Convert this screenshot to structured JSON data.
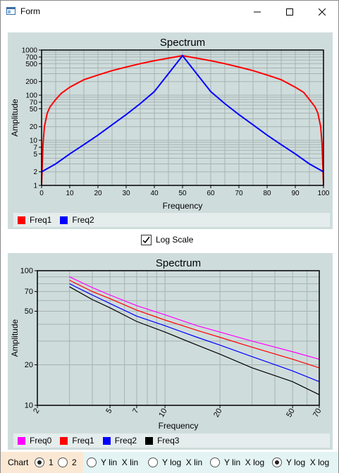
{
  "window": {
    "title": "Form"
  },
  "log_scale": {
    "label": "Log Scale",
    "checked": true
  },
  "bottom": {
    "chart_label": "Chart",
    "chart_options": [
      "1",
      "2"
    ],
    "chart_selected": "1",
    "scale_options": [
      "Y lin  X lin",
      "Y log  X lin",
      "Y lin  X log",
      "Y log  X log"
    ],
    "scale_selected": "Y log  X log"
  },
  "chart1": {
    "legend": [
      {
        "name": "Freq1",
        "color": "#ff0000"
      },
      {
        "name": "Freq2",
        "color": "#0000ff"
      }
    ]
  },
  "chart2": {
    "legend": [
      {
        "name": "Freq0",
        "color": "#ff00ff"
      },
      {
        "name": "Freq1",
        "color": "#ff0000"
      },
      {
        "name": "Freq2",
        "color": "#0000ff"
      },
      {
        "name": "Freq3",
        "color": "#000000"
      }
    ]
  },
  "chart_data": [
    {
      "type": "line",
      "title": "Spectrum",
      "xlabel": "Frequency",
      "ylabel": "Amplitude",
      "xlim": [
        0,
        100
      ],
      "ylim": [
        1,
        1000
      ],
      "yscale": "log",
      "grid": true,
      "xticks": [
        "0",
        "10",
        "20",
        "30",
        "40",
        "50",
        "60",
        "70",
        "80",
        "90",
        "100"
      ],
      "yticks": [
        "1",
        "2",
        "5",
        "7",
        "10",
        "20",
        "50",
        "70",
        "100",
        "200",
        "500",
        "700",
        "1000"
      ],
      "series": [
        {
          "name": "Freq1",
          "color": "#ff0000",
          "x": [
            0,
            0.5,
            1,
            2,
            3,
            5,
            7,
            10,
            15,
            20,
            25,
            30,
            35,
            40,
            45,
            50,
            55,
            60,
            65,
            70,
            75,
            80,
            85,
            90,
            93,
            95,
            97,
            98,
            99,
            99.5,
            100
          ],
          "y": [
            1,
            8,
            20,
            40,
            55,
            80,
            110,
            150,
            220,
            280,
            350,
            420,
            500,
            580,
            660,
            750,
            660,
            580,
            500,
            420,
            350,
            280,
            220,
            150,
            115,
            80,
            55,
            40,
            20,
            8,
            1
          ]
        },
        {
          "name": "Freq2",
          "color": "#0000ff",
          "x": [
            0,
            5,
            10,
            15,
            20,
            25,
            30,
            35,
            40,
            45,
            50,
            55,
            60,
            65,
            70,
            75,
            80,
            85,
            90,
            95,
            100
          ],
          "y": [
            2,
            3,
            5,
            8,
            13,
            22,
            37,
            65,
            120,
            300,
            750,
            300,
            120,
            65,
            37,
            22,
            13,
            8,
            5,
            3,
            2
          ]
        }
      ]
    },
    {
      "type": "line",
      "title": "Spectrum",
      "xlabel": "Frequency",
      "ylabel": "Amplitude",
      "xlim": [
        2,
        70
      ],
      "ylim": [
        10,
        100
      ],
      "xscale": "log",
      "yscale": "log",
      "grid": true,
      "xticks": [
        "2",
        "5",
        "7",
        "10",
        "20",
        "50",
        "70"
      ],
      "yticks": [
        "10",
        "20",
        "50",
        "70",
        "100"
      ],
      "series": [
        {
          "name": "Freq0",
          "color": "#ff00ff",
          "x": [
            3,
            4,
            5,
            7,
            10,
            15,
            20,
            30,
            50,
            70
          ],
          "y": [
            90,
            75,
            66,
            55,
            47,
            39,
            35,
            30,
            25,
            22
          ]
        },
        {
          "name": "Freq1",
          "color": "#ff0000",
          "x": [
            3,
            4,
            5,
            7,
            10,
            15,
            20,
            30,
            50,
            70
          ],
          "y": [
            85,
            70,
            62,
            51,
            43,
            36,
            32,
            27,
            22,
            19
          ]
        },
        {
          "name": "Freq2",
          "color": "#0000ff",
          "x": [
            3,
            4,
            5,
            7,
            10,
            15,
            20,
            30,
            50,
            70
          ],
          "y": [
            80,
            66,
            57,
            46,
            39,
            32,
            28,
            23,
            18,
            15
          ]
        },
        {
          "name": "Freq3",
          "color": "#000000",
          "x": [
            3,
            4,
            5,
            7,
            10,
            15,
            20,
            30,
            50,
            70
          ],
          "y": [
            76,
            61,
            53,
            42,
            35,
            28,
            24,
            19,
            15,
            12
          ]
        }
      ]
    }
  ]
}
